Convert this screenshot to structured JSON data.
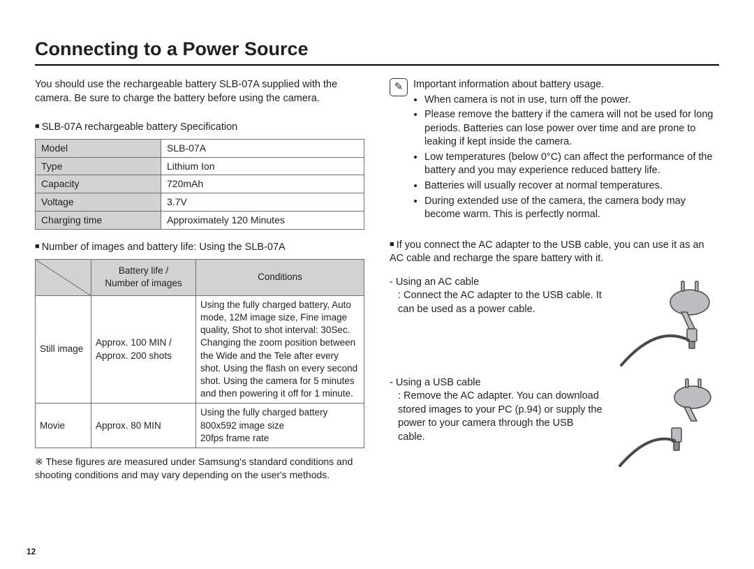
{
  "page": {
    "title": "Connecting to a Power Source",
    "page_number": "12",
    "colors": {
      "text": "#231f20",
      "border": "#6d6e71",
      "header_bg": "#d1d2d4",
      "rule": "#000000",
      "bg": "#ffffff",
      "icon_stroke": "#333333",
      "adapter_fill": "#bcbdc0",
      "adapter_stroke": "#4a4a4a"
    },
    "fonts": {
      "title_pt": 27,
      "body_pt": 14.5,
      "table_pt": 14,
      "life_table_pt": 13.5
    }
  },
  "left": {
    "intro": "You should use the rechargeable battery SLB-07A supplied with the camera. Be sure to charge the battery before using the camera.",
    "spec_heading": "SLB-07A rechargeable battery Specification",
    "spec_rows": [
      {
        "k": "Model",
        "v": "SLB-07A"
      },
      {
        "k": "Type",
        "v": "Lithium Ion"
      },
      {
        "k": "Capacity",
        "v": "720mAh"
      },
      {
        "k": "Voltage",
        "v": "3.7V"
      },
      {
        "k": "Charging time",
        "v": "Approximately 120 Minutes"
      }
    ],
    "life_heading": "Number of images and battery life: Using the SLB-07A",
    "life_header": {
      "c1_line1": "Battery life /",
      "c1_line2": "Number of images",
      "c2": "Conditions"
    },
    "life_rows": [
      {
        "mode": "Still image",
        "value": "Approx. 100 MIN / Approx. 200 shots",
        "cond": "Using the fully charged battery, Auto mode, 12M image size, Fine image quality, Shot to shot interval: 30Sec. Changing the zoom position between the Wide and the Tele after every shot. Using the flash on every second shot. Using the camera for 5 minutes and then powering it off for 1 minute."
      },
      {
        "mode": "Movie",
        "value": "Approx. 80 MIN",
        "cond": "Using the fully charged battery\n800x592 image size\n20fps frame rate"
      }
    ],
    "footnote": "※ These figures are measured under Samsung's standard conditions and shooting conditions and may vary depending on the user's methods."
  },
  "right": {
    "note_title": "Important information about battery usage.",
    "note_bullets": [
      "When camera is not in use, turn off the power.",
      "Please remove the battery if the camera will not be used for long periods. Batteries can lose power over time and are prone to leaking if kept inside the camera.",
      "Low temperatures (below 0°C) can affect the performance of the battery and you may experience reduced battery life.",
      "Batteries will usually recover at normal temperatures.",
      "During extended use of the camera, the camera body may become warm. This is perfectly normal."
    ],
    "ac_heading": "If you connect the AC adapter to the USB cable, you can use it as an AC cable and recharge the spare battery with it.",
    "ac_item": {
      "lead": "- Using an AC cable",
      "desc": ": Connect the AC adapter to the USB cable. It can be used as a power cable."
    },
    "usb_item": {
      "lead": "- Using a USB cable",
      "desc": ": Remove the AC adapter. You can download stored images to your PC (p.94) or supply the power to your camera through the USB cable."
    }
  }
}
